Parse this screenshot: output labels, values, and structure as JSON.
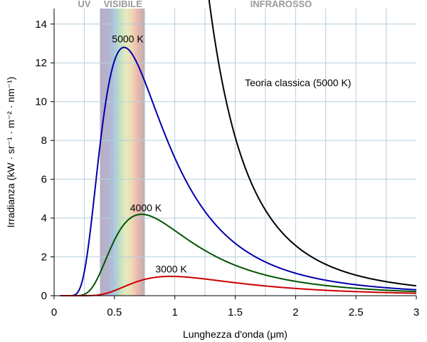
{
  "chart_data": {
    "type": "line",
    "title": "",
    "xlabel": "Lunghezza d'onda (μm)",
    "ylabel": "Irradianza (kW · sr⁻¹ · m⁻² · nm⁻¹)",
    "xlim": [
      0,
      3
    ],
    "ylim": [
      0,
      14.8
    ],
    "grid": true,
    "x_ticks": [
      0,
      0.5,
      1,
      1.5,
      2,
      2.5,
      3
    ],
    "x_tick_labels": [
      "0",
      "0.5",
      "1",
      "1.5",
      "2",
      "2.5",
      "3"
    ],
    "y_ticks": [
      0,
      2,
      4,
      6,
      8,
      10,
      12,
      14
    ],
    "y_tick_labels": [
      "0",
      "2",
      "4",
      "6",
      "8",
      "10",
      "12",
      "14"
    ],
    "regions": [
      {
        "name": "uv",
        "label": "UV",
        "label_x": 0.25
      },
      {
        "name": "visible",
        "label": "VISIBILE",
        "label_x": 0.57,
        "x_range": [
          0.38,
          0.75
        ]
      },
      {
        "name": "infrared",
        "label": "INFRAROSSO",
        "label_x": 1.88
      }
    ],
    "series": [
      {
        "name": "5000 K",
        "label": "5000 K",
        "color": "#0000aa",
        "temperature_k": 5000,
        "label_at": [
          0.61,
          13.05
        ]
      },
      {
        "name": "4000 K",
        "label": "4000 K",
        "color": "#005500",
        "temperature_k": 4000,
        "label_at": [
          0.76,
          4.35
        ]
      },
      {
        "name": "3000 K",
        "label": "3000 K",
        "color": "#cc0000",
        "temperature_k": 3000,
        "label_at": [
          0.97,
          1.2
        ]
      },
      {
        "name": "Teoria classica (5000 K)",
        "label": "Teoria classica (5000 K)",
        "color": "#000000",
        "temperature_k": 5000,
        "classical": true,
        "label_at": [
          1.58,
          10.8
        ]
      }
    ]
  }
}
